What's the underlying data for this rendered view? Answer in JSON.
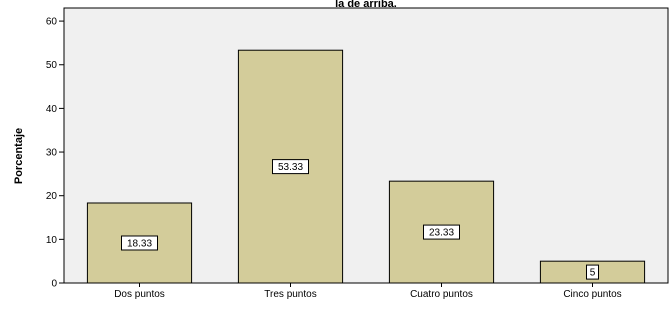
{
  "chart_data": {
    "type": "bar",
    "title": "la de arriba.",
    "xlabel": "",
    "ylabel": "Porcentaje",
    "categories": [
      "Dos puntos",
      "Tres puntos",
      "Cuatro puntos",
      "Cinco puntos"
    ],
    "values": [
      18.33,
      53.33,
      23.33,
      5
    ],
    "data_labels": [
      "18.33",
      "53.33",
      "23.33",
      "5"
    ],
    "ylim": [
      0,
      63
    ],
    "yticks": [
      "0",
      "10",
      "20",
      "30",
      "40",
      "50",
      "60"
    ],
    "grid": false,
    "bar_color": "#d3cc9a",
    "plot_background": "#f0f0f0"
  }
}
